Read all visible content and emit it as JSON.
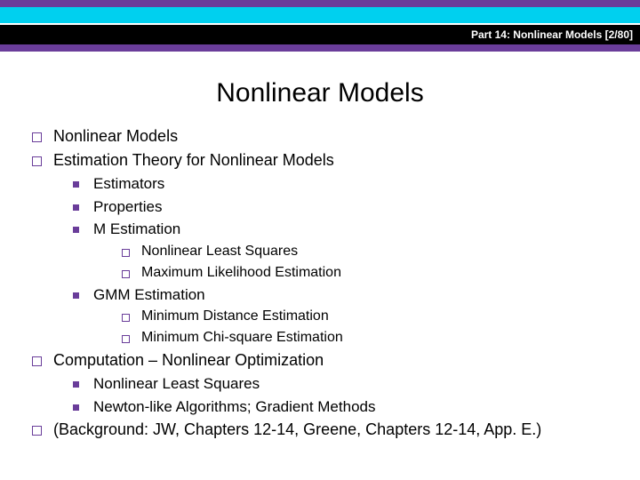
{
  "colors": {
    "purple": "#6a3d9a",
    "cyan": "#00d0ef",
    "black": "#000000",
    "white": "#ffffff"
  },
  "header": {
    "text": "Part 14: Nonlinear Models [2/80]"
  },
  "title": "Nonlinear Models",
  "outline": {
    "items": [
      {
        "label": "Nonlinear Models"
      },
      {
        "label": "Estimation Theory for Nonlinear Models",
        "sub": [
          {
            "label": "Estimators"
          },
          {
            "label": "Properties"
          },
          {
            "label": "M Estimation",
            "sub": [
              {
                "label": "Nonlinear Least Squares"
              },
              {
                "label": "Maximum Likelihood Estimation"
              }
            ]
          },
          {
            "label": "GMM Estimation",
            "sub": [
              {
                "label": "Minimum Distance Estimation"
              },
              {
                "label": "Minimum Chi-square Estimation"
              }
            ]
          }
        ]
      },
      {
        "label": "Computation – Nonlinear Optimization",
        "sub": [
          {
            "label": "Nonlinear Least Squares"
          },
          {
            "label": "Newton-like Algorithms; Gradient Methods"
          }
        ]
      },
      {
        "label": "(Background: JW, Chapters 12-14, Greene, Chapters 12-14, App. E.)"
      }
    ]
  }
}
